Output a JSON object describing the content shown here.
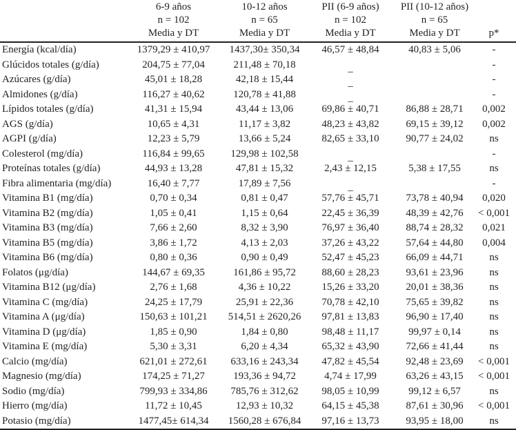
{
  "header": {
    "groups": [
      "6-9 años",
      "10-12 años",
      "PII (6-9 años)",
      "PII (10-12 años)",
      ""
    ],
    "counts": [
      "n = 102",
      "n = 65",
      "n = 102",
      "n = 65",
      ""
    ],
    "stats": [
      "Media y DT",
      "Media y DT",
      "Media y DT",
      "Media y DT",
      "p*"
    ]
  },
  "rows": [
    [
      "Energía (kcal/día)",
      "1379,29 ± 410,97",
      "1437,30± 350,34",
      "46,57 ± 48,84",
      "40,83 ± 5,06",
      "-"
    ],
    [
      "Glúcidos totales (g/día)",
      "204,75 ± 77,04",
      "211,48 ± 70,18",
      "_",
      "_",
      "-"
    ],
    [
      "Azúcares (g/día)",
      "45,01 ± 18,28",
      "42,18 ± 15,44",
      "_",
      "_",
      "-"
    ],
    [
      "Almidones (g/día)",
      "116,27 ± 40,62",
      "120,78 ± 41,88",
      "_",
      "_",
      "-"
    ],
    [
      "Lípidos totales (g/día)",
      "41,31 ± 15,94",
      "43,44 ± 13,06",
      "69,86 ± 40,71",
      "86,88 ± 28,71",
      "0,002"
    ],
    [
      "AGS (g/día)",
      "10,65 ± 4,31",
      "11,17 ± 3,82",
      "48,23 ± 43,82",
      "69,15 ± 39,12",
      "0,002"
    ],
    [
      "AGPI (g/día)",
      "12,23 ± 5,79",
      "13,66 ± 5,24",
      "82,65 ± 33,10",
      "90,77 ± 24,02",
      "ns"
    ],
    [
      "Colesterol (mg/día)",
      "116,84 ± 99,65",
      "129,98 ± 102,58",
      "_",
      "_",
      "-"
    ],
    [
      "Proteínas totales (g/día)",
      "44,93 ± 13,28",
      "47,81 ± 15,32",
      "2,43 ± 12,15",
      "5,38 ± 17,55",
      "ns"
    ],
    [
      "Fibra alimentaria (mg/día)",
      "16,40 ± 7,77",
      "17,89 ± 7,56",
      "_",
      "_",
      "-"
    ],
    [
      "Vitamina B1 (mg/día)",
      "0,70 ± 0,34",
      "0,81 ± 0,47",
      "57,76 ± 45,71",
      "73,78 ± 40,94",
      "0,020"
    ],
    [
      "Vitamina B2 (mg/día)",
      "1,05 ± 0,41",
      "1,15 ± 0,64",
      "22,45 ± 36,39",
      "48,39 ± 42,76",
      "< 0,001"
    ],
    [
      "Vitamina B3 (mg/día)",
      "7,66 ± 2,60",
      "8,32 ± 3,90",
      "76,97 ± 36,40",
      "88,74 ± 28,32",
      "0,021"
    ],
    [
      "Vitamina B5 (mg/día)",
      "3,86 ± 1,72",
      "4,13 ± 2,03",
      "37,26 ± 43,22",
      "57,64 ± 44,80",
      "0,004"
    ],
    [
      "Vitamina B6 (mg/día)",
      "0,80 ± 0,36",
      "0,90 ± 0,49",
      "52,47 ± 45,23",
      "66,09 ± 44,71",
      "ns"
    ],
    [
      "Folatos (μg/día)",
      "144,67 ± 69,35",
      "161,86 ± 95,72",
      "88,60 ± 28,23",
      "93,61 ± 23,96",
      "ns"
    ],
    [
      "Vitamina B12 (μg/día)",
      "2,76 ± 1,68",
      "4,36 ± 10,22",
      "15,26 ± 33,20",
      "20,01 ± 38,36",
      "ns"
    ],
    [
      "Vitamina C (mg/día)",
      "24,25 ± 17,79",
      "25,91 ± 22,36",
      "70,78 ± 42,10",
      "75,65 ± 39,82",
      "ns"
    ],
    [
      "Vitamina A (μg/día)",
      "150,63 ± 101,21",
      "514,51 ± 2620,26",
      "97,81 ± 13,83",
      "96,90 ± 17,40",
      "ns"
    ],
    [
      "Vitamina D (μg/día)",
      "1,85 ± 0,90",
      "1,84 ± 0,80",
      "98,48 ± 11,17",
      "99,97 ± 0,14",
      "ns"
    ],
    [
      "Vitamina E (mg/día)",
      "5,30 ± 3,31",
      "6,20 ± 4,34",
      "65,32 ± 43,90",
      "72,66 ± 41,44",
      "ns"
    ],
    [
      "Calcio (mg/día)",
      "621,01 ± 272,61",
      "633,16 ± 243,34",
      "47,82 ± 45,54",
      "92,48 ± 23,69",
      "< 0,001"
    ],
    [
      "Magnesio (mg/día)",
      "174,25 ± 71,27",
      "193,36 ± 94,72",
      "4,74 ± 17,99",
      "63,26 ± 43,15",
      "< 0,001"
    ],
    [
      "Sodio (mg/día)",
      "799,93 ± 334,86",
      "785,76 ± 312,62",
      "98,05 ± 10,99",
      "99,12 ± 6,57",
      "ns"
    ],
    [
      "Hierro (mg/día)",
      "11,72 ± 10,45",
      "12,93 ± 10,32",
      "64,15 ± 45,38",
      "87,61 ± 30,96",
      "< 0,001"
    ],
    [
      "Potasio (mg/día)",
      "1477,45± 614,34",
      "1560,28 ± 676,84",
      "97,16 ± 13,73",
      "93,95 ± 18,00",
      "ns"
    ]
  ]
}
